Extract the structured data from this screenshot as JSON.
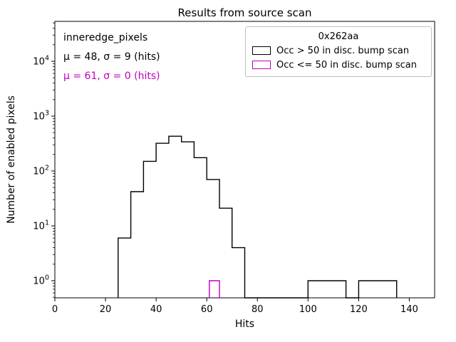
{
  "chart_data": {
    "type": "bar",
    "title": "Results from source scan",
    "xlabel": "Hits",
    "ylabel": "Number of enabled pixels",
    "xlim": [
      0,
      150
    ],
    "x_major_ticks": [
      0,
      20,
      40,
      60,
      80,
      100,
      120,
      140
    ],
    "y_scale": "log",
    "y_tick_exponents": [
      0,
      1,
      2,
      3,
      4
    ],
    "ylim": [
      0.49,
      53000
    ],
    "grid": false,
    "legend_position": "upper right",
    "series": [
      {
        "name": "Occ > 50 in disc. bump scan",
        "color": "#000000",
        "bins": [
          [
            25,
            30,
            6
          ],
          [
            30,
            35,
            42
          ],
          [
            35,
            40,
            150
          ],
          [
            40,
            45,
            320
          ],
          [
            45,
            50,
            430
          ],
          [
            50,
            55,
            340
          ],
          [
            55,
            60,
            175
          ],
          [
            60,
            65,
            70
          ],
          [
            65,
            70,
            21
          ],
          [
            70,
            75,
            4
          ],
          [
            75,
            100,
            0
          ],
          [
            100,
            115,
            1
          ],
          [
            115,
            120,
            0
          ],
          [
            120,
            135,
            1
          ]
        ]
      },
      {
        "name": "Occ <= 50 in disc. bump scan",
        "color": "#bf00bf",
        "bins": [
          [
            61,
            65,
            1
          ]
        ]
      }
    ]
  },
  "annotations": {
    "dataset_label": "inneredge_pixels",
    "stats_black": "μ = 48, σ = 9 (hits)",
    "stats_magenta": "μ = 61, σ = 0 (hits)"
  },
  "legend": {
    "title": "0x262aa",
    "entries": [
      {
        "label": "Occ > 50 in disc. bump scan",
        "color": "#000000"
      },
      {
        "label": "Occ <= 50 in disc. bump scan",
        "color": "#bf00bf"
      }
    ]
  },
  "colors": {
    "black": "#000000",
    "magenta": "#bf00bf",
    "legend_border": "#c0c0c0"
  }
}
